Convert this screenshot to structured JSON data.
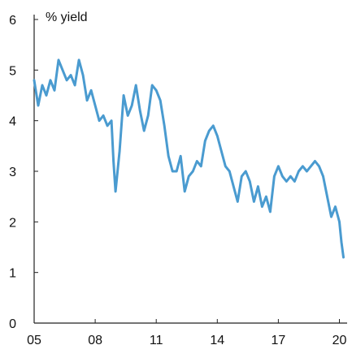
{
  "chart_data": {
    "type": "line",
    "title": "",
    "unit_label": "% yield",
    "xlabel": "",
    "ylabel": "",
    "x_ticks": [
      "05",
      "08",
      "11",
      "14",
      "17",
      "20"
    ],
    "y_ticks": [
      "0",
      "1",
      "2",
      "3",
      "4",
      "5",
      "6"
    ],
    "xlim": [
      2005.0,
      2020.3
    ],
    "ylim": [
      0,
      6
    ],
    "grid": false,
    "legend": "none",
    "line_color": "#4a9bd0",
    "series": [
      {
        "x": [
          2005.0,
          2005.2,
          2005.4,
          2005.6,
          2005.8,
          2006.0,
          2006.2,
          2006.4,
          2006.6,
          2006.8,
          2007.0,
          2007.2,
          2007.4,
          2007.6,
          2007.8,
          2008.0,
          2008.2,
          2008.4,
          2008.6,
          2008.8,
          2008.9,
          2009.0,
          2009.2,
          2009.4,
          2009.6,
          2009.8,
          2010.0,
          2010.2,
          2010.4,
          2010.6,
          2010.8,
          2011.0,
          2011.2,
          2011.4,
          2011.6,
          2011.8,
          2012.0,
          2012.2,
          2012.4,
          2012.6,
          2012.8,
          2013.0,
          2013.2,
          2013.4,
          2013.6,
          2013.8,
          2014.0,
          2014.2,
          2014.4,
          2014.6,
          2014.8,
          2015.0,
          2015.2,
          2015.4,
          2015.6,
          2015.8,
          2016.0,
          2016.2,
          2016.4,
          2016.6,
          2016.8,
          2017.0,
          2017.2,
          2017.4,
          2017.6,
          2017.8,
          2018.0,
          2018.2,
          2018.4,
          2018.6,
          2018.8,
          2019.0,
          2019.2,
          2019.4,
          2019.6,
          2019.8,
          2020.0,
          2020.1,
          2020.2
        ],
        "y": [
          4.8,
          4.3,
          4.7,
          4.5,
          4.8,
          4.6,
          5.2,
          5.0,
          4.8,
          4.9,
          4.7,
          5.2,
          4.9,
          4.4,
          4.6,
          4.3,
          4.0,
          4.1,
          3.9,
          4.0,
          3.2,
          2.6,
          3.4,
          4.5,
          4.1,
          4.3,
          4.7,
          4.2,
          3.8,
          4.1,
          4.7,
          4.6,
          4.4,
          3.9,
          3.3,
          3.0,
          3.0,
          3.3,
          2.6,
          2.9,
          3.0,
          3.2,
          3.1,
          3.6,
          3.8,
          3.9,
          3.7,
          3.4,
          3.1,
          3.0,
          2.7,
          2.4,
          2.9,
          3.0,
          2.8,
          2.4,
          2.7,
          2.3,
          2.5,
          2.2,
          2.9,
          3.1,
          2.9,
          2.8,
          2.9,
          2.8,
          3.0,
          3.1,
          3.0,
          3.1,
          3.2,
          3.1,
          2.9,
          2.5,
          2.1,
          2.3,
          2.0,
          1.6,
          1.3
        ]
      }
    ]
  }
}
